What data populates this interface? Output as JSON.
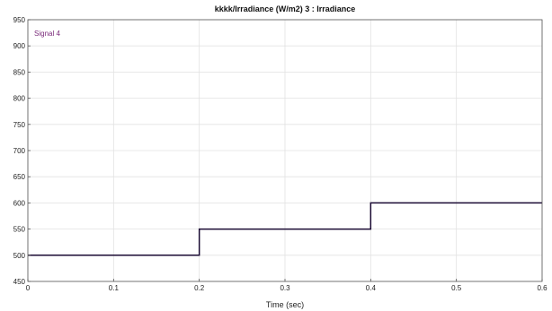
{
  "chart_data": {
    "type": "line",
    "title": "kkkk/Irradiance (W/m2) 3 : Irradiance",
    "xlabel": "Time (sec)",
    "ylabel": "",
    "xlim": [
      0,
      0.6
    ],
    "ylim": [
      450,
      950
    ],
    "x_ticks": [
      0,
      0.1,
      0.2,
      0.3,
      0.4,
      0.5,
      0.6
    ],
    "x_tick_labels": [
      "0",
      "0.1",
      "0.2",
      "0.3",
      "0.4",
      "0.5",
      "0.6"
    ],
    "y_ticks": [
      450,
      500,
      550,
      600,
      650,
      700,
      750,
      800,
      850,
      900,
      950
    ],
    "y_tick_labels": [
      "450",
      "500",
      "550",
      "600",
      "650",
      "700",
      "750",
      "800",
      "850",
      "900",
      "950"
    ],
    "grid": true,
    "legend_placement": "top-left",
    "series": [
      {
        "name": "Signal 4",
        "color": "#1a0a33",
        "legend_color": "#7a2a7a",
        "step": true,
        "x": [
          0,
          0.2,
          0.2,
          0.4,
          0.4,
          0.6
        ],
        "y": [
          500,
          500,
          550,
          550,
          600,
          600
        ]
      }
    ]
  }
}
